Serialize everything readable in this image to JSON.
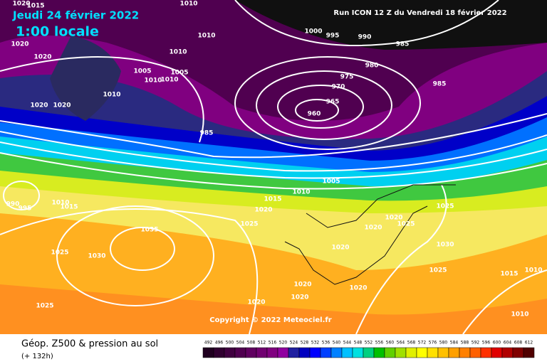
{
  "header": {
    "date": "Jeudi 24 février 2022",
    "time": "1:00 locale",
    "run": "Run ICON 12 Z du Vendredi 18 février 2022"
  },
  "copyright": "Copyright © 2022 Meteociel.fr",
  "footer": {
    "title": "Géop. Z500 & pression au sol",
    "subtitle": "(+ 132h)"
  },
  "isobar_labels": [
    "1010",
    "1010",
    "1000",
    "995",
    "990",
    "985",
    "980",
    "975",
    "970",
    "965",
    "960",
    "985",
    "985",
    "1005",
    "1010",
    "1005",
    "1010",
    "1010",
    "1010",
    "1020",
    "1020",
    "1020",
    "1020",
    "1005",
    "1010",
    "1015",
    "1020",
    "1025",
    "1020",
    "1020",
    "1025",
    "1025",
    "1030",
    "1025",
    "1020",
    "1020",
    "1020",
    "1020",
    "1020",
    "1035",
    "1030",
    "1025",
    "1025",
    "1015",
    "1010",
    "1010",
    "990",
    "995",
    "1010",
    "1015",
    "1020",
    "1015"
  ],
  "color_scale": {
    "labels": [
      492,
      496,
      500,
      504,
      508,
      512,
      516,
      520,
      524,
      528,
      532,
      536,
      540,
      544,
      548,
      552,
      556,
      560,
      564,
      568,
      572,
      576,
      580,
      584,
      588,
      592,
      596,
      600,
      604,
      608,
      612
    ],
    "colors": [
      "#200020",
      "#300030",
      "#400040",
      "#500050",
      "#600060",
      "#700070",
      "#800080",
      "#9000a0",
      "#2020a0",
      "#0000c0",
      "#0000ff",
      "#0040ff",
      "#0080ff",
      "#00c0ff",
      "#00e0e0",
      "#00d080",
      "#00c000",
      "#60d000",
      "#a0e000",
      "#e0f000",
      "#ffff00",
      "#ffe000",
      "#ffc000",
      "#ffa000",
      "#ff8000",
      "#ff6000",
      "#ff3000",
      "#e00000",
      "#b00000",
      "#800000",
      "#500000"
    ]
  }
}
